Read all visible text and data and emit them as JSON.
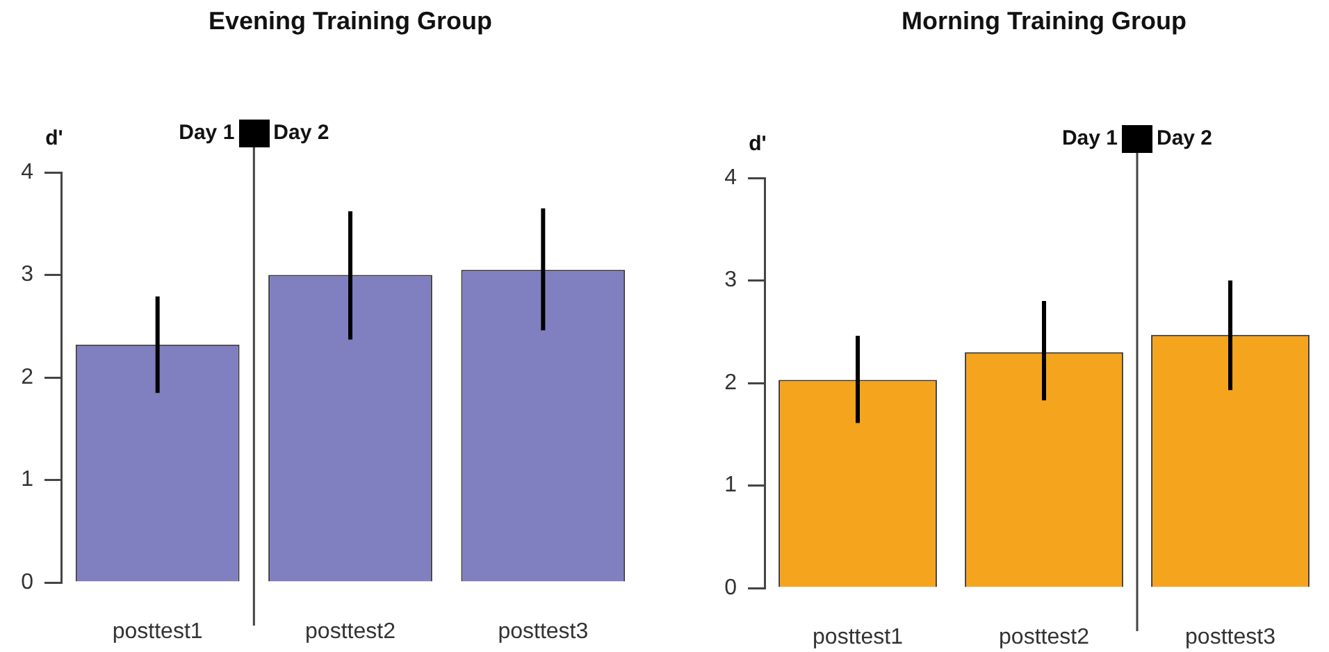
{
  "chart_data": [
    {
      "type": "bar",
      "title": "Evening Training Group",
      "ylabel": "d'",
      "categories": [
        "posttest1",
        "posttest2",
        "posttest3"
      ],
      "values": [
        2.32,
        3.0,
        3.05
      ],
      "errors": [
        [
          1.85,
          2.79
        ],
        [
          2.37,
          3.62
        ],
        [
          2.46,
          3.65
        ]
      ],
      "color": "#807fbf",
      "ylim": [
        0,
        4
      ],
      "yticks": [
        0,
        1,
        2,
        3,
        4
      ],
      "grid": false,
      "annotations": [
        "Day 1",
        "Day 2"
      ]
    },
    {
      "type": "bar",
      "title": "Morning Training Group",
      "ylabel": "d'",
      "categories": [
        "posttest1",
        "posttest2",
        "posttest3"
      ],
      "values": [
        2.03,
        2.3,
        2.47
      ],
      "errors": [
        [
          1.61,
          2.46
        ],
        [
          1.83,
          2.8
        ],
        [
          1.93,
          3.0
        ]
      ],
      "color": "#f5a41e",
      "ylim": [
        0,
        4
      ],
      "yticks": [
        0,
        1,
        2,
        3,
        4
      ],
      "grid": false,
      "annotations": [
        "Day 1",
        "Day 2"
      ]
    }
  ]
}
